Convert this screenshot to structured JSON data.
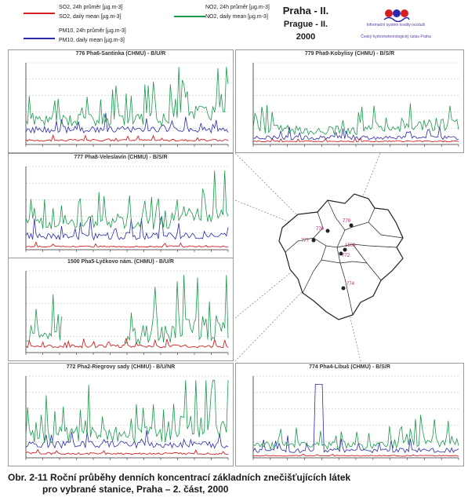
{
  "legend": {
    "so2": {
      "l1": "SO2, 24h průměr [µg.m-3]",
      "l2": "SO2, daily mean [µg.m-3]",
      "color": "#d62020"
    },
    "pm10": {
      "l1": "PM10, 24h průměr [µg.m-3]",
      "l2": "PM10, daily mean [µg.m-3]",
      "color": "#2a2ab0"
    },
    "no2": {
      "l1": "NO2, 24h průměr [µg.m-3]",
      "l2": "NO2, daily mean [µg.m-3]",
      "color": "#1a9a4a"
    }
  },
  "title": {
    "line1": "Praha - II.",
    "line2": "Prague - II.",
    "line3": "2000"
  },
  "logo": {
    "org1": "Informační systém kvality ovzduší",
    "org2": "Český hydrometeorologický ústav Praha"
  },
  "caption": {
    "line1": "Obr. 2-11  Roční průběhy denních koncentrací základních znečišťujících látek",
    "line2": "pro vybrané stanice, Praha – 2. část, 2000"
  },
  "map": {
    "markers": [
      "776",
      "779",
      "777",
      "1500",
      "772",
      "774"
    ]
  },
  "chart_data": [
    {
      "type": "line",
      "title": "776 Pha6-Santinka (CHMU) - B/U/R",
      "series": [
        {
          "name": "NO2"
        },
        {
          "name": "PM10"
        },
        {
          "name": "SO2"
        }
      ]
    },
    {
      "type": "line",
      "title": "779 Pha9-Kobylisy (CHMU) - B/S/R",
      "series": [
        {
          "name": "NO2"
        },
        {
          "name": "PM10"
        },
        {
          "name": "SO2"
        }
      ]
    },
    {
      "type": "line",
      "title": "777 Pha8-Veleslavín (CHMU) - B/S/R",
      "series": [
        {
          "name": "NO2"
        },
        {
          "name": "PM10"
        },
        {
          "name": "SO2"
        }
      ]
    },
    {
      "type": "line",
      "title": "1500 Pha5-Lyčkovo nám. (CHMU) - B/U/R",
      "series": [
        {
          "name": "NO2"
        },
        {
          "name": "PM10"
        },
        {
          "name": "SO2"
        }
      ]
    },
    {
      "type": "line",
      "title": "772 Pha2-Riegrovy sady (CHMU) - B/U/NR",
      "series": [
        {
          "name": "NO2"
        },
        {
          "name": "PM10"
        },
        {
          "name": "SO2"
        }
      ]
    },
    {
      "type": "line",
      "title": "774 Pha4-Libuš (CHMU) - B/S/R",
      "series": [
        {
          "name": "NO2"
        },
        {
          "name": "PM10"
        },
        {
          "name": "SO2"
        }
      ]
    }
  ]
}
